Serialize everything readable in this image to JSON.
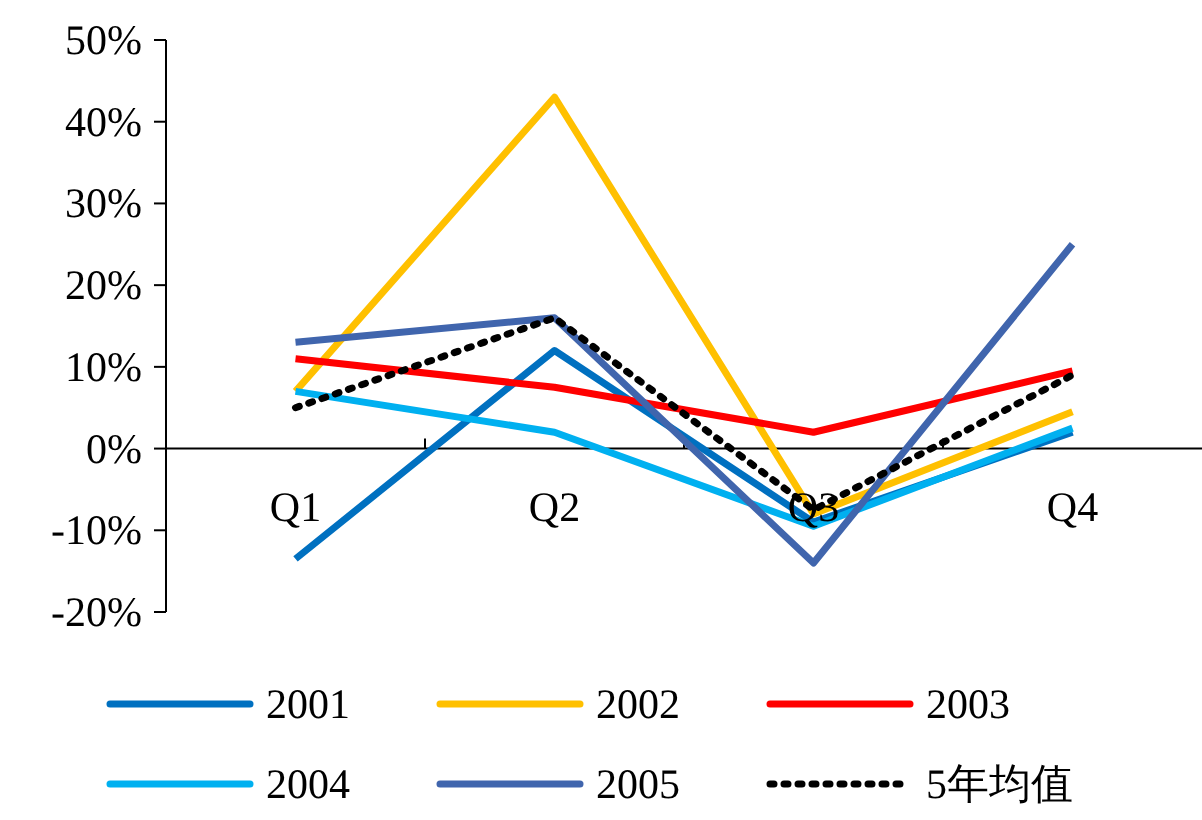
{
  "chart_data": {
    "type": "line",
    "categories": [
      "Q1",
      "Q2",
      "Q3",
      "Q4"
    ],
    "series": [
      {
        "name": "2001",
        "color": "#0070c0",
        "values": [
          -13.5,
          12,
          -9,
          2
        ]
      },
      {
        "name": "2002",
        "color": "#ffc000",
        "values": [
          7,
          43,
          -8,
          4.5
        ]
      },
      {
        "name": "2003",
        "color": "#ff0000",
        "values": [
          11,
          7.5,
          2,
          9.5
        ]
      },
      {
        "name": "2004",
        "color": "#00b0f0",
        "values": [
          7,
          2,
          -9.5,
          2.5
        ]
      },
      {
        "name": "2005",
        "color": "#4065ad",
        "values": [
          13,
          16,
          -14,
          25
        ]
      },
      {
        "name": "5年均值",
        "color": "#000000",
        "values": [
          5,
          16,
          -7.5,
          9
        ],
        "line_style": "dotted"
      }
    ],
    "ylim": [
      -20,
      50
    ],
    "yticks": [
      {
        "value": -20,
        "label": "-20%"
      },
      {
        "value": -10,
        "label": "-10%"
      },
      {
        "value": 0,
        "label": "0%"
      },
      {
        "value": 10,
        "label": "10%"
      },
      {
        "value": 20,
        "label": "20%"
      },
      {
        "value": 30,
        "label": "30%"
      },
      {
        "value": 40,
        "label": "40%"
      },
      {
        "value": 50,
        "label": "50%"
      }
    ],
    "grid": false,
    "legend": "bottom",
    "marker": "none",
    "line_style": "solid"
  }
}
